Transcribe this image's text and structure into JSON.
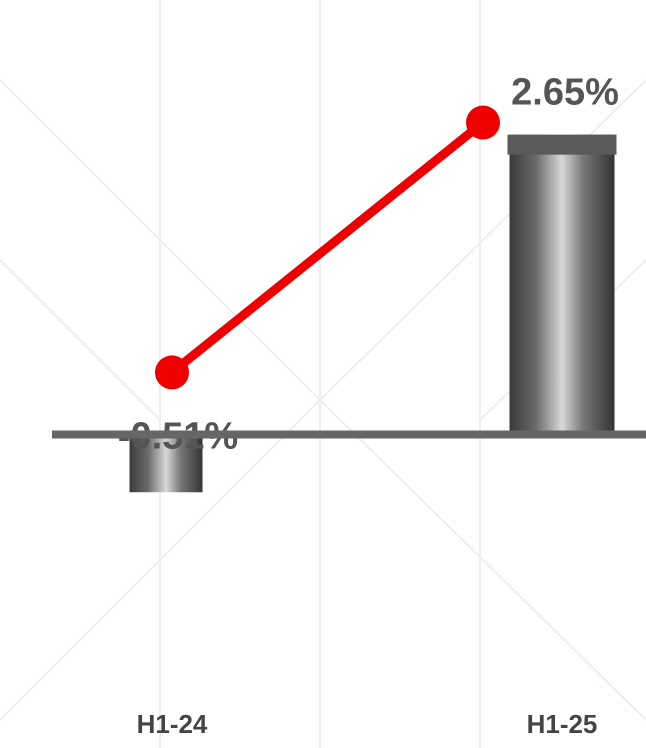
{
  "chart_data": {
    "type": "bar",
    "categories": [
      "H1-24",
      "H1-25"
    ],
    "series": [
      {
        "type": "bar",
        "color": "#6e6e6e",
        "values": [
          -0.51,
          2.65
        ],
        "value_labels": [
          "-0.51%",
          "2.65%"
        ]
      },
      {
        "type": "line",
        "color": "#ee0000",
        "values": [
          -0.51,
          2.65
        ],
        "axis": "y2"
      }
    ],
    "ylim": [
      -2.77,
      3.84
    ],
    "y2lim": [
      -5.26,
      4.2
    ]
  }
}
